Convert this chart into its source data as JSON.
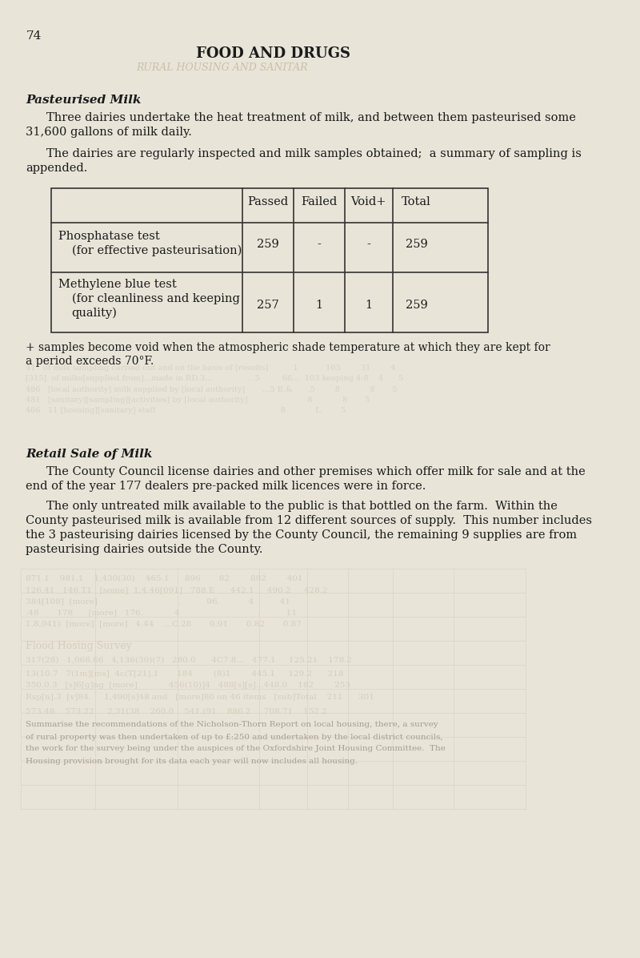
{
  "page_number": "74",
  "main_title": "FOOD AND DRUGS",
  "subtitle_ghost": "RURAL HOUSING AND SANITAR",
  "section_title": "Pasteurised Milk",
  "para1": "Three dairies undertake the heat treatment of milk, and between them pasteurised some\n31,600 gallons of milk daily.",
  "para2": "The dairies are regularly inspected and milk samples obtained;  a summary of sampling is\nappended.",
  "table_headers": [
    "",
    "Passed",
    "Failed",
    "Void+",
    "Total"
  ],
  "table_rows": [
    [
      "Phosphatase test\n    (for effective pasteurisation)",
      "259",
      "-",
      "-",
      "259"
    ],
    [
      "Methylene blue test\n    (for cleanliness and keeping\n    quality)",
      "257",
      "1",
      "1",
      "259"
    ]
  ],
  "footnote": "+ samples become void when the atmospheric shade temperature at which they are kept for\na period exceeds 70°F.",
  "section2_title": "Retail Sale of Milk",
  "para3": "The County Council license dairies and other premises which offer milk for sale and at the\nend of the year 177 dealers pre-packed milk licences were in force.",
  "para4": "The only untreated milk available to the public is that bottled on the farm.  Within the\nCounty pasteurised milk is available from 12 different sources of supply.  This number includes\nthe 3 pasteurising dairies licensed by the County Council, the remaining 9 supplies are from\npasteurising dairies outside the County.",
  "bg_color": "#e8e4d8",
  "text_color": "#1a1a1a",
  "table_border_color": "#333333",
  "ghost_text_color": "#c8c0a8"
}
